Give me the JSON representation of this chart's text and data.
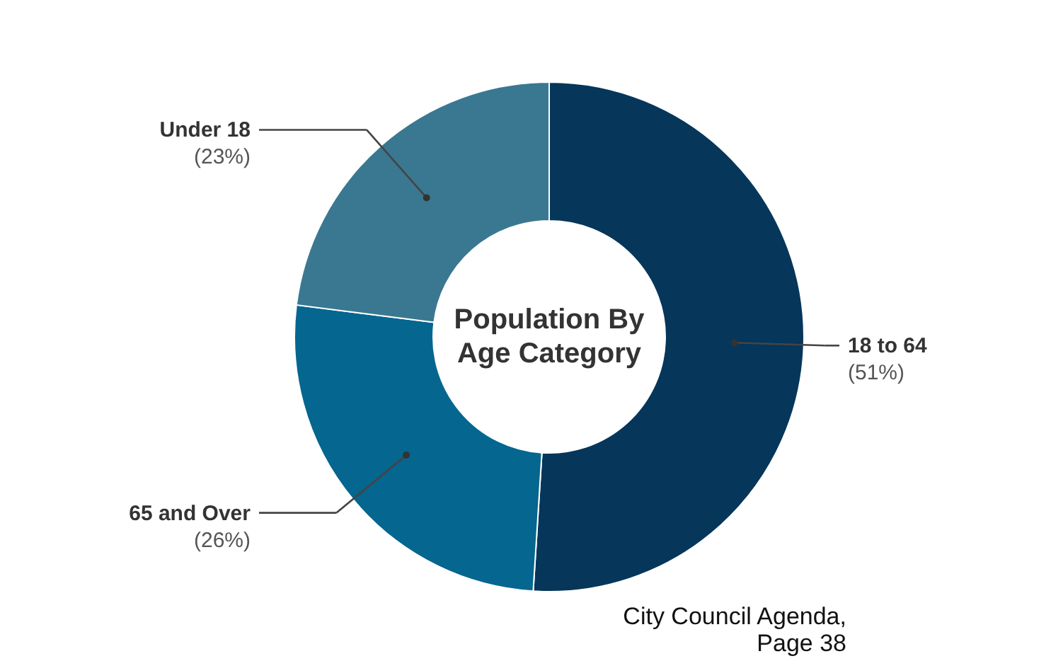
{
  "chart_data": {
    "type": "donut",
    "title": "Population By Age Category",
    "categories": [
      "18 to 64",
      "65 and Over",
      "Under 18"
    ],
    "values": [
      51,
      26,
      23
    ],
    "colors": [
      "#06365a",
      "#05668f",
      "#3a7891"
    ],
    "value_labels": [
      "(51%)",
      "(26%)",
      "(23%)"
    ],
    "annotations": [
      "City Council Agenda, Page 38"
    ]
  }
}
